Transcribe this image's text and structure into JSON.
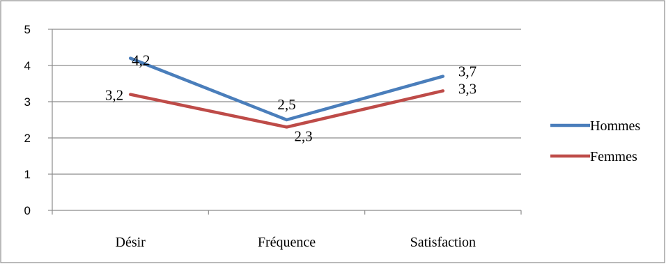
{
  "chart_data": {
    "type": "line",
    "title": "",
    "xlabel": "",
    "ylabel": "",
    "categories": [
      "Désir",
      "Fréquence",
      "Satisfaction"
    ],
    "ylim": [
      0,
      5
    ],
    "yticks": [
      "0",
      "1",
      "2",
      "3",
      "4",
      "5"
    ],
    "grid": "horizontal",
    "legend_position": "right",
    "series": [
      {
        "name": "Hommes",
        "color": "#4a7ebb",
        "values": [
          4.2,
          2.5,
          3.7
        ],
        "labels": [
          "4,2",
          "2,5",
          "3,7"
        ]
      },
      {
        "name": "Femmes",
        "color": "#be4b48",
        "values": [
          3.2,
          2.3,
          3.3
        ],
        "labels": [
          "3,2",
          "2,3",
          "3,3"
        ]
      }
    ]
  }
}
